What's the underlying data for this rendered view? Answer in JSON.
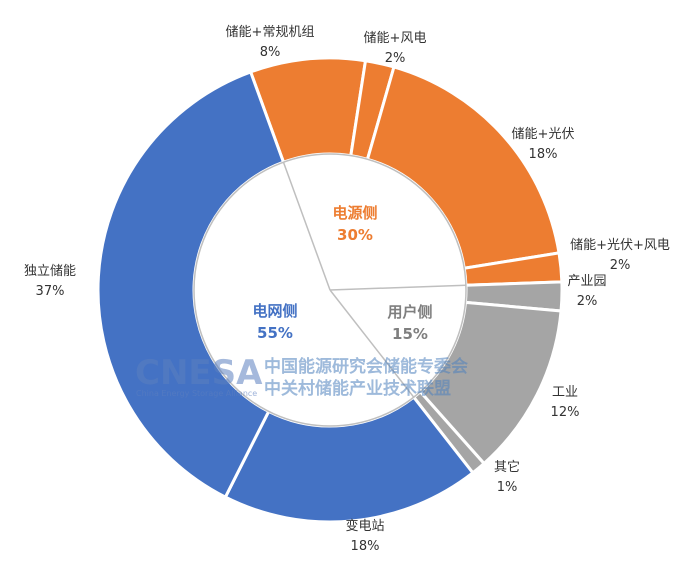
{
  "chart_data": {
    "type": "pie",
    "subtype": "nested-donut",
    "colors": {
      "grid": "#4472c4",
      "source": "#ed7d31",
      "user": "#a5a5a5",
      "separator": "#ffffff",
      "inner_fill": "#ffffff",
      "inner_border": "#bfbfbf",
      "label_text": "#333333"
    },
    "inner": [
      {
        "name": "电源侧",
        "pct_label": "30%",
        "value": 30,
        "group": "source",
        "label_color": "#ed7d31"
      },
      {
        "name": "用户侧",
        "pct_label": "15%",
        "value": 15,
        "group": "user",
        "label_color": "#7f7f7f"
      },
      {
        "name": "电网侧",
        "pct_label": "55%",
        "value": 55,
        "group": "grid",
        "label_color": "#4472c4"
      }
    ],
    "outer": [
      {
        "name": "储能+常规机组",
        "pct_label": "8%",
        "value": 8,
        "group": "source"
      },
      {
        "name": "储能+风电",
        "pct_label": "2%",
        "value": 2,
        "group": "source"
      },
      {
        "name": "储能+光伏",
        "pct_label": "18%",
        "value": 18,
        "group": "source"
      },
      {
        "name": "储能+光伏+风电",
        "pct_label": "2%",
        "value": 2,
        "group": "source"
      },
      {
        "name": "产业园",
        "pct_label": "2%",
        "value": 2,
        "group": "user"
      },
      {
        "name": "工业",
        "pct_label": "12%",
        "value": 12,
        "group": "user"
      },
      {
        "name": "其它",
        "pct_label": "1%",
        "value": 1,
        "group": "user"
      },
      {
        "name": "变电站",
        "pct_label": "18%",
        "value": 18,
        "group": "grid"
      },
      {
        "name": "独立储能",
        "pct_label": "37%",
        "value": 37,
        "group": "grid"
      }
    ]
  },
  "watermark": {
    "logo": "CNESA",
    "logo_sub": "China Energy Storage Alliance",
    "line1": "中国能源研究会储能专委会",
    "line2": "中关村储能产业技术联盟"
  }
}
